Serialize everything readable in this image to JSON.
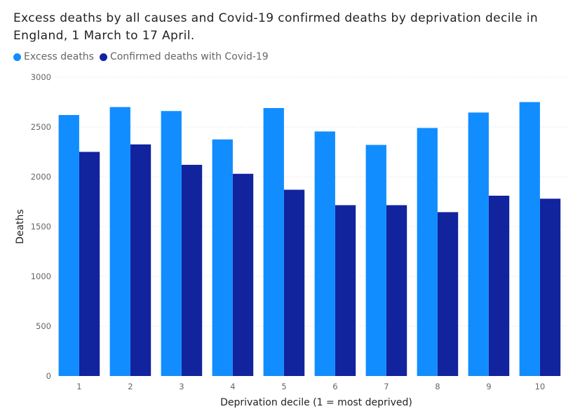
{
  "chart_data": {
    "type": "bar",
    "title": "Excess deaths by all causes and Covid-19 confirmed deaths by deprivation decile in England, 1 March to 17 April.",
    "xlabel": "Deprivation decile (1 = most deprived)",
    "ylabel": "Deaths",
    "categories": [
      "1",
      "2",
      "3",
      "4",
      "5",
      "6",
      "7",
      "8",
      "9",
      "10"
    ],
    "series": [
      {
        "name": "Excess deaths",
        "color": "#118DFF",
        "values": [
          2620,
          2700,
          2660,
          2375,
          2690,
          2455,
          2320,
          2490,
          2645,
          2750
        ]
      },
      {
        "name": "Confirmed deaths with Covid-19",
        "color": "#12239E",
        "values": [
          2250,
          2325,
          2120,
          2030,
          1870,
          1715,
          1715,
          1645,
          1810,
          1780
        ]
      }
    ],
    "ylim": [
      0,
      3000
    ],
    "yticks": [
      0,
      500,
      1000,
      1500,
      2000,
      2500,
      3000
    ],
    "grid": true,
    "legend_position": "top-left"
  }
}
